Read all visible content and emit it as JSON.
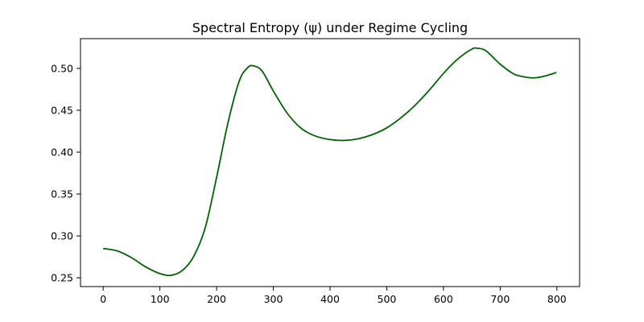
{
  "chart_data": {
    "type": "line",
    "title": "Spectral Entropy (ψ) under Regime Cycling",
    "xlabel": "",
    "ylabel": "",
    "xlim": [
      -40,
      840
    ],
    "ylim": [
      0.2395,
      0.5355
    ],
    "xticks": [
      0,
      100,
      200,
      300,
      400,
      500,
      600,
      700,
      800
    ],
    "xtick_labels": [
      "0",
      "100",
      "200",
      "300",
      "400",
      "500",
      "600",
      "700",
      "800"
    ],
    "yticks": [
      0.25,
      0.3,
      0.35,
      0.4,
      0.45,
      0.5
    ],
    "ytick_labels": [
      "0.25",
      "0.30",
      "0.35",
      "0.40",
      "0.45",
      "0.50"
    ],
    "grid": false,
    "series": [
      {
        "color": "#006400",
        "x": [
          0,
          25,
          50,
          75,
          100,
          120,
          140,
          160,
          180,
          200,
          220,
          240,
          255,
          265,
          280,
          300,
          325,
          350,
          375,
          400,
          425,
          450,
          475,
          500,
          525,
          550,
          575,
          600,
          625,
          650,
          660,
          675,
          700,
          725,
          750,
          765,
          780,
          799
        ],
        "y": [
          0.285,
          0.282,
          0.274,
          0.263,
          0.255,
          0.253,
          0.259,
          0.276,
          0.31,
          0.37,
          0.435,
          0.485,
          0.501,
          0.503,
          0.497,
          0.473,
          0.446,
          0.428,
          0.419,
          0.415,
          0.414,
          0.416,
          0.421,
          0.429,
          0.441,
          0.456,
          0.474,
          0.494,
          0.511,
          0.523,
          0.524,
          0.521,
          0.505,
          0.493,
          0.489,
          0.489,
          0.491,
          0.495
        ]
      }
    ]
  }
}
